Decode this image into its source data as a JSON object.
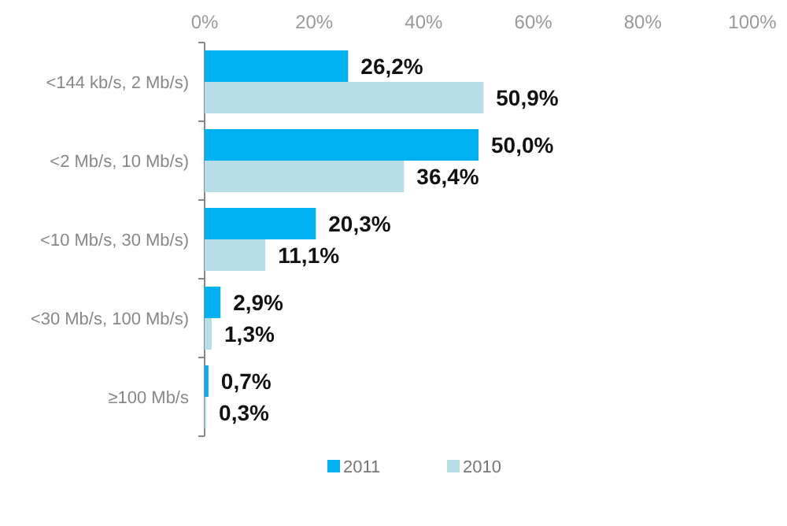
{
  "chart_data": {
    "type": "bar",
    "orientation": "horizontal",
    "categories": [
      "<144 kb/s, 2 Mb/s)",
      "<2 Mb/s, 10 Mb/s)",
      "<10 Mb/s, 30 Mb/s)",
      "<30 Mb/s, 100 Mb/s)",
      "≥100 Mb/s"
    ],
    "series": [
      {
        "name": "2011",
        "color": "#00b0f0",
        "values": [
          26.2,
          50.0,
          20.3,
          2.9,
          0.7
        ],
        "value_labels": [
          "26,2%",
          "50,0%",
          "20,3%",
          "2,9%",
          "0,7%"
        ]
      },
      {
        "name": "2010",
        "color": "#b7dde8",
        "values": [
          50.9,
          36.4,
          11.1,
          1.3,
          0.3
        ],
        "value_labels": [
          "50,9%",
          "36,4%",
          "11,1%",
          "1,3%",
          "0,3%"
        ]
      }
    ],
    "xlim": [
      0,
      100
    ],
    "xticks": [
      {
        "value": 0,
        "label": "0%"
      },
      {
        "value": 20,
        "label": "20%"
      },
      {
        "value": 40,
        "label": "40%"
      },
      {
        "value": 60,
        "label": "60%"
      },
      {
        "value": 80,
        "label": "80%"
      },
      {
        "value": 100,
        "label": "100%"
      }
    ],
    "grid": false,
    "legend": "bottom"
  }
}
